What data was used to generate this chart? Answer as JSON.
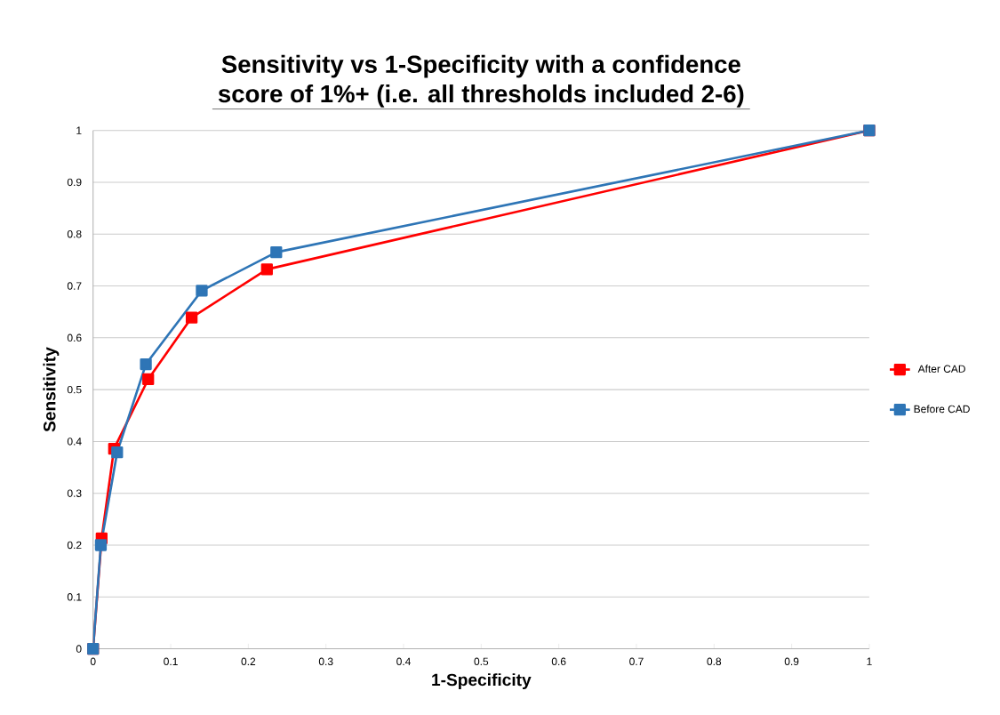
{
  "chart_data": {
    "type": "line",
    "title": "Sensitivity vs 1-Specificity with a confidence score of  1%+ (i.e. all thresholds included 2-6)",
    "xlabel": "1-Specificity",
    "ylabel": "Sensitivity",
    "series": [
      {
        "name": "After CAD",
        "color": "#ff0000",
        "x": [
          0,
          0.011,
          0.027,
          0.071,
          0.127,
          0.224,
          1
        ],
        "values": [
          0,
          0.213,
          0.386,
          0.52,
          0.639,
          0.732,
          1
        ]
      },
      {
        "name": "Before CAD",
        "color": "#2e75b6",
        "x": [
          0,
          0.01,
          0.031,
          0.068,
          0.14,
          0.236,
          1
        ],
        "values": [
          0,
          0.2,
          0.379,
          0.549,
          0.691,
          0.765,
          1
        ]
      }
    ],
    "xlim": [
      0,
      1
    ],
    "ylim": [
      0,
      1
    ],
    "xticks": [
      0,
      0.1,
      0.2,
      0.3,
      0.4,
      0.5,
      0.6,
      0.7,
      0.8,
      0.9,
      1
    ],
    "yticks": [
      0,
      0.1,
      0.2,
      0.3,
      0.4,
      0.5,
      0.6,
      0.7,
      0.8,
      0.9,
      1
    ],
    "grid": "y",
    "legend": "right",
    "marker": "square",
    "line_style": "solid"
  }
}
